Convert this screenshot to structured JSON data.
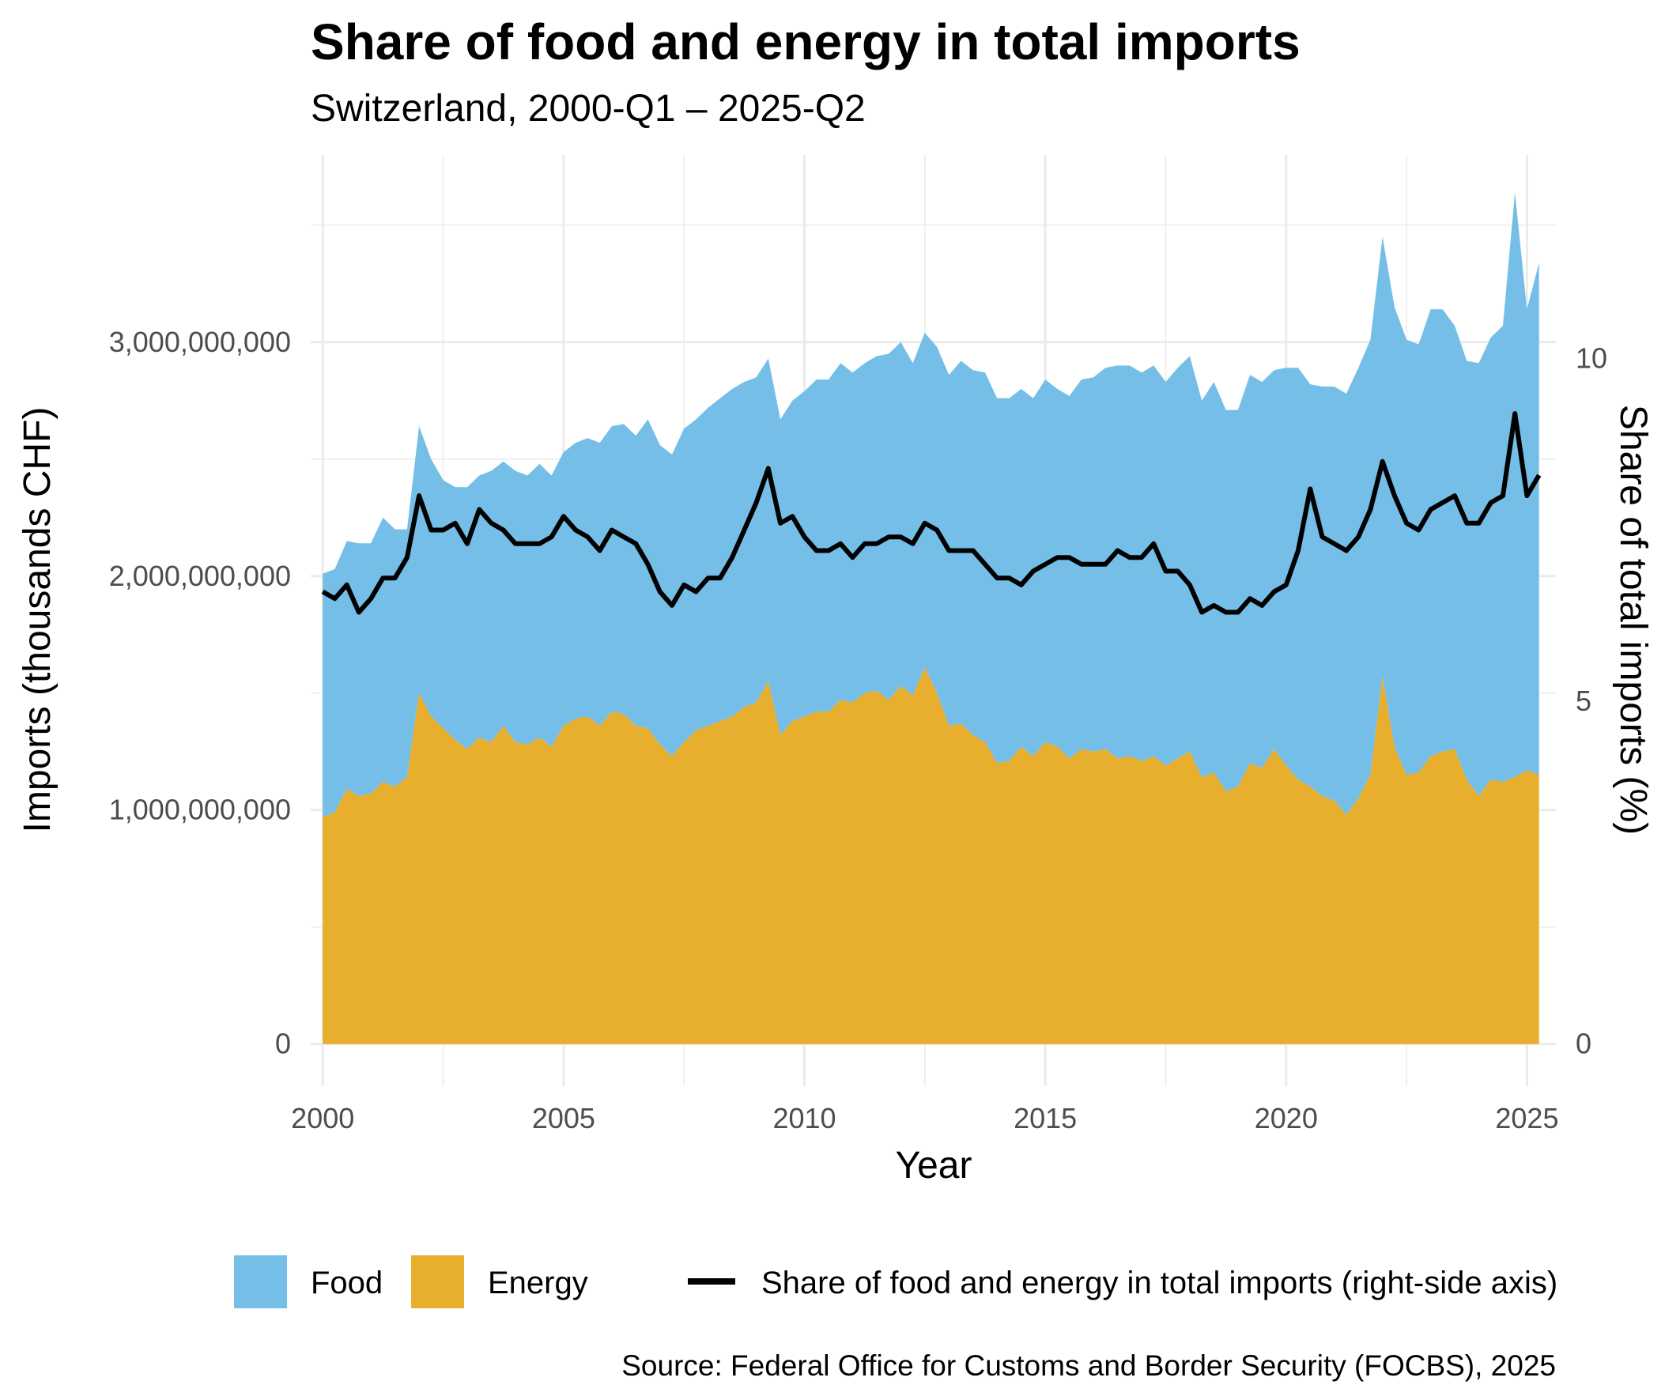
{
  "chart_data": {
    "type": "area",
    "title": "Share of food and energy in total imports",
    "subtitle": "Switzerland, 2000-Q1 – 2025-Q2",
    "xlabel": "Year",
    "ylabel": "Imports (thousands CHF)",
    "y2label": "Share of total imports (%)",
    "caption": "Source: Federal Office for Customs and Border Security (FOCBS), 2025",
    "xlim": [
      1999.75,
      2025.6
    ],
    "ylim": [
      -180000000,
      3800000000
    ],
    "y2lim": [
      0,
      12
    ],
    "x_ticks": [
      2000,
      2005,
      2010,
      2015,
      2020,
      2025
    ],
    "x_tick_labels": [
      "2000",
      "2005",
      "2010",
      "2015",
      "2020",
      "2025"
    ],
    "y_ticks": [
      0,
      1000000000,
      2000000000,
      3000000000
    ],
    "y_tick_labels": [
      "0",
      "1,000,000,000",
      "2,000,000,000",
      "3,000,000,000"
    ],
    "y2_ticks": [
      0,
      5,
      10
    ],
    "y2_tick_labels": [
      "0",
      "5",
      "10"
    ],
    "grid": true,
    "legend_position": "bottom",
    "colors": {
      "food": "#74BEE8",
      "energy": "#E8AE2E",
      "share": "#000000",
      "grid": "#EBEBEB"
    },
    "legend": [
      {
        "key": "food",
        "label": "Food",
        "shape": "box"
      },
      {
        "key": "energy",
        "label": "Energy",
        "shape": "box"
      },
      {
        "key": "share",
        "label": "Share of food and energy in total imports (right-side axis)",
        "shape": "line"
      }
    ],
    "x": [
      2000.0,
      2000.25,
      2000.5,
      2000.75,
      2001.0,
      2001.25,
      2001.5,
      2001.75,
      2002.0,
      2002.25,
      2002.5,
      2002.75,
      2003.0,
      2003.25,
      2003.5,
      2003.75,
      2004.0,
      2004.25,
      2004.5,
      2004.75,
      2005.0,
      2005.25,
      2005.5,
      2005.75,
      2006.0,
      2006.25,
      2006.5,
      2006.75,
      2007.0,
      2007.25,
      2007.5,
      2007.75,
      2008.0,
      2008.25,
      2008.5,
      2008.75,
      2009.0,
      2009.25,
      2009.5,
      2009.75,
      2010.0,
      2010.25,
      2010.5,
      2010.75,
      2011.0,
      2011.25,
      2011.5,
      2011.75,
      2012.0,
      2012.25,
      2012.5,
      2012.75,
      2013.0,
      2013.25,
      2013.5,
      2013.75,
      2014.0,
      2014.25,
      2014.5,
      2014.75,
      2015.0,
      2015.25,
      2015.5,
      2015.75,
      2016.0,
      2016.25,
      2016.5,
      2016.75,
      2017.0,
      2017.25,
      2017.5,
      2017.75,
      2018.0,
      2018.25,
      2018.5,
      2018.75,
      2019.0,
      2019.25,
      2019.5,
      2019.75,
      2020.0,
      2020.25,
      2020.5,
      2020.75,
      2021.0,
      2021.25,
      2021.5,
      2021.75,
      2022.0,
      2022.25,
      2022.5,
      2022.75,
      2023.0,
      2023.25,
      2023.5,
      2023.75,
      2024.0,
      2024.25,
      2024.5,
      2024.75,
      2025.0,
      2025.25
    ],
    "series": [
      {
        "name": "Energy",
        "key": "energy",
        "values": [
          970000000,
          990000000,
          1090000000,
          1060000000,
          1070000000,
          1120000000,
          1100000000,
          1140000000,
          1500000000,
          1400000000,
          1350000000,
          1300000000,
          1260000000,
          1310000000,
          1290000000,
          1360000000,
          1290000000,
          1280000000,
          1310000000,
          1270000000,
          1360000000,
          1390000000,
          1400000000,
          1360000000,
          1420000000,
          1410000000,
          1360000000,
          1350000000,
          1280000000,
          1230000000,
          1290000000,
          1340000000,
          1360000000,
          1380000000,
          1400000000,
          1440000000,
          1460000000,
          1550000000,
          1320000000,
          1380000000,
          1400000000,
          1420000000,
          1420000000,
          1470000000,
          1460000000,
          1500000000,
          1510000000,
          1470000000,
          1530000000,
          1490000000,
          1610000000,
          1500000000,
          1360000000,
          1370000000,
          1320000000,
          1290000000,
          1200000000,
          1210000000,
          1270000000,
          1230000000,
          1290000000,
          1270000000,
          1220000000,
          1260000000,
          1250000000,
          1260000000,
          1220000000,
          1230000000,
          1210000000,
          1230000000,
          1190000000,
          1220000000,
          1250000000,
          1140000000,
          1160000000,
          1080000000,
          1100000000,
          1200000000,
          1180000000,
          1260000000,
          1190000000,
          1130000000,
          1100000000,
          1060000000,
          1040000000,
          980000000,
          1050000000,
          1150000000,
          1570000000,
          1270000000,
          1150000000,
          1160000000,
          1230000000,
          1250000000,
          1260000000,
          1130000000,
          1060000000,
          1130000000,
          1120000000,
          1140000000,
          1170000000,
          1150000000
        ]
      },
      {
        "name": "Food",
        "key": "food",
        "values": [
          1040000000,
          1040000000,
          1060000000,
          1080000000,
          1070000000,
          1130000000,
          1100000000,
          1060000000,
          1140000000,
          1100000000,
          1060000000,
          1080000000,
          1120000000,
          1120000000,
          1160000000,
          1130000000,
          1160000000,
          1150000000,
          1170000000,
          1160000000,
          1170000000,
          1180000000,
          1190000000,
          1210000000,
          1220000000,
          1240000000,
          1240000000,
          1320000000,
          1280000000,
          1290000000,
          1340000000,
          1330000000,
          1360000000,
          1380000000,
          1400000000,
          1390000000,
          1390000000,
          1380000000,
          1350000000,
          1370000000,
          1390000000,
          1420000000,
          1420000000,
          1440000000,
          1410000000,
          1410000000,
          1430000000,
          1480000000,
          1470000000,
          1420000000,
          1430000000,
          1480000000,
          1500000000,
          1550000000,
          1560000000,
          1580000000,
          1560000000,
          1550000000,
          1530000000,
          1530000000,
          1550000000,
          1530000000,
          1550000000,
          1580000000,
          1600000000,
          1630000000,
          1680000000,
          1670000000,
          1660000000,
          1670000000,
          1640000000,
          1670000000,
          1690000000,
          1610000000,
          1670000000,
          1630000000,
          1610000000,
          1660000000,
          1650000000,
          1620000000,
          1700000000,
          1760000000,
          1720000000,
          1750000000,
          1770000000,
          1800000000,
          1840000000,
          1860000000,
          1880000000,
          1880000000,
          1860000000,
          1830000000,
          1910000000,
          1890000000,
          1810000000,
          1790000000,
          1850000000,
          1890000000,
          1950000000,
          2500000000,
          1970000000,
          2190000000
        ]
      }
    ],
    "share": {
      "name": "Share of food and energy in total imports (right-side axis)",
      "values": [
        6.6,
        6.5,
        6.7,
        6.3,
        6.5,
        6.8,
        6.8,
        7.1,
        8.0,
        7.5,
        7.5,
        7.6,
        7.3,
        7.8,
        7.6,
        7.5,
        7.3,
        7.3,
        7.3,
        7.4,
        7.7,
        7.5,
        7.4,
        7.2,
        7.5,
        7.4,
        7.3,
        7.0,
        6.6,
        6.4,
        6.7,
        6.6,
        6.8,
        6.8,
        7.1,
        7.5,
        7.9,
        8.4,
        7.6,
        7.7,
        7.4,
        7.2,
        7.2,
        7.3,
        7.1,
        7.3,
        7.3,
        7.4,
        7.4,
        7.3,
        7.6,
        7.5,
        7.2,
        7.2,
        7.2,
        7.0,
        6.8,
        6.8,
        6.7,
        6.9,
        7.0,
        7.1,
        7.1,
        7.0,
        7.0,
        7.0,
        7.2,
        7.1,
        7.1,
        7.3,
        6.9,
        6.9,
        6.7,
        6.3,
        6.4,
        6.3,
        6.3,
        6.5,
        6.4,
        6.6,
        6.7,
        7.2,
        8.1,
        7.4,
        7.3,
        7.2,
        7.4,
        7.8,
        8.5,
        8.0,
        7.6,
        7.5,
        7.8,
        7.9,
        8.0,
        7.6,
        7.6,
        7.9,
        8.0,
        9.2,
        8.0,
        8.3
      ]
    }
  }
}
